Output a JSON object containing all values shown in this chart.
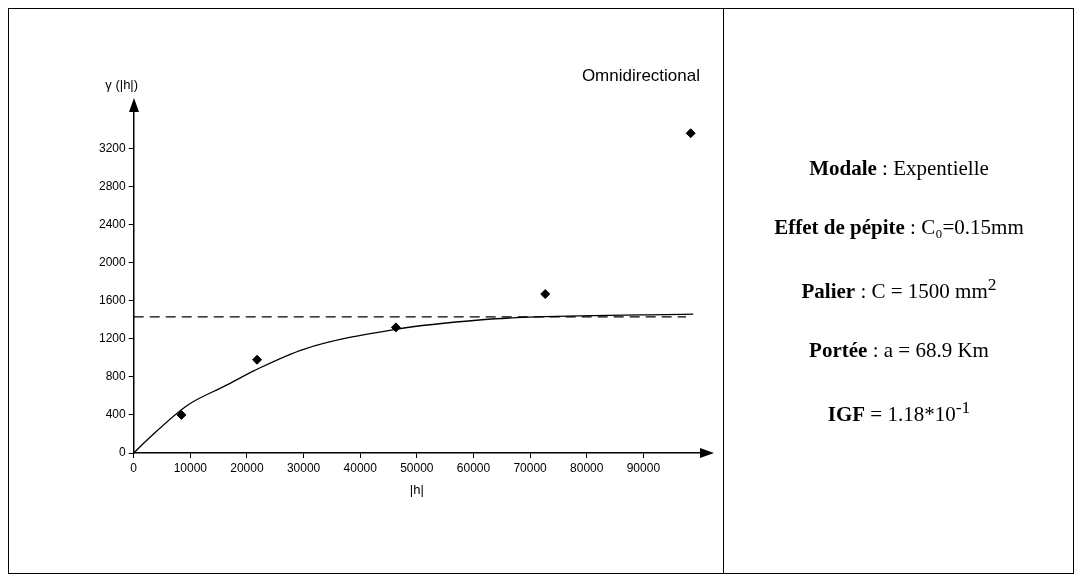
{
  "chart_data": {
    "type": "scatter",
    "title": "Omnidirectional",
    "xlabel": "|h|",
    "ylabel": "γ (|h|)",
    "series": [
      {
        "color": "#000000",
        "marker": "diamond",
        "x": [
          8420,
          21780,
          46300,
          72670,
          98360
        ],
        "values": [
          400,
          980,
          1320,
          1670,
          3360
        ]
      },
      {
        "type": "line",
        "color": "#000000",
        "marker": "none",
        "line_style": "solid",
        "x": [
          0,
          2600,
          9450,
          16300,
          21780,
          30000,
          46300,
          61500,
          71100,
          98800
        ],
        "values": [
          0,
          150,
          500,
          710,
          880,
          1090,
          1300,
          1400,
          1430,
          1460
        ]
      }
    ],
    "ref_lines": [
      {
        "axis": "y",
        "value": 1430,
        "line_style": "dashed",
        "color": "#000000"
      }
    ],
    "xlim": [
      0,
      100000
    ],
    "xticks": [
      0,
      10000,
      20000,
      30000,
      40000,
      50000,
      60000,
      70000,
      80000,
      90000
    ],
    "ylim": [
      0,
      3600
    ],
    "yticks": [
      0,
      400,
      800,
      1200,
      1600,
      2000,
      2400,
      2800,
      3200
    ],
    "grid": false,
    "legend": false,
    "annotations": [
      "Modale : Expentielle",
      "Effet de pépite : C₀=0.15mm",
      "Palier : C = 1500 mm$^{2}$",
      "Portée : a = 68.9 Km",
      "IGF = 1.18*10$^{-1}$"
    ]
  }
}
